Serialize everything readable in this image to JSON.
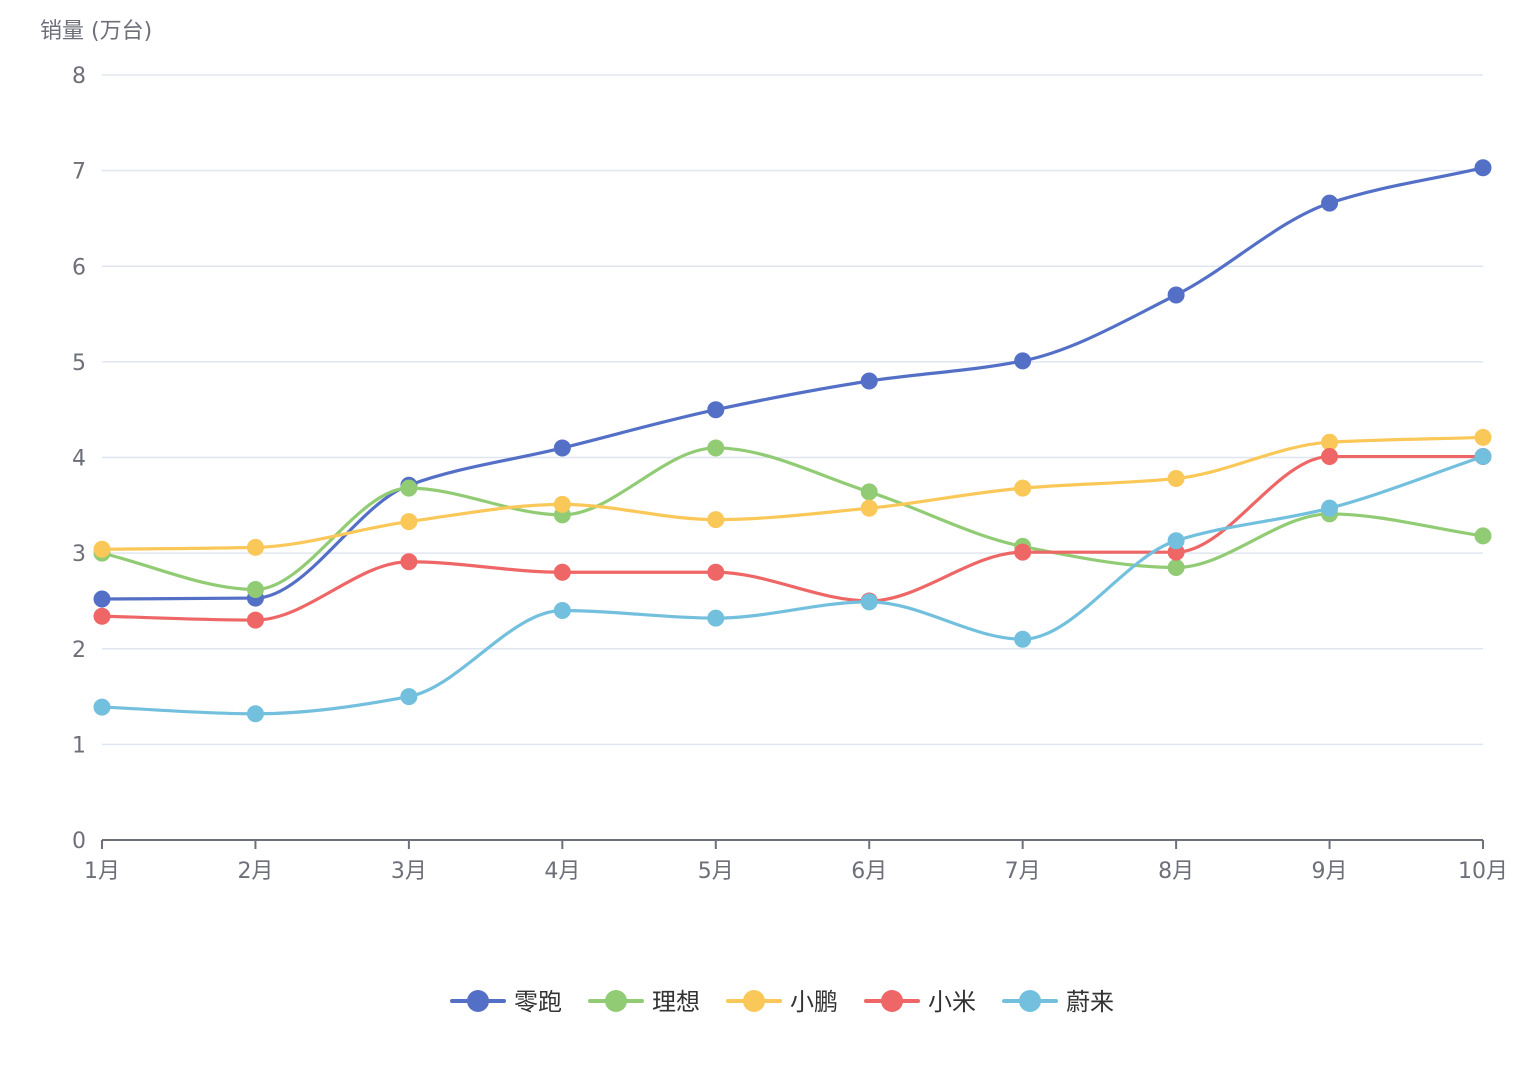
{
  "chart_data": {
    "type": "line",
    "smooth": true,
    "ylabel": "销量 (万台)",
    "xlabel": "",
    "categories": [
      "1月",
      "2月",
      "3月",
      "4月",
      "5月",
      "6月",
      "7月",
      "8月",
      "9月",
      "10月"
    ],
    "ylim": [
      0,
      8
    ],
    "yticks": [
      "0",
      "1",
      "2",
      "3",
      "4",
      "5",
      "6",
      "7",
      "8"
    ],
    "grid": true,
    "legend_position": "bottom-center",
    "series": [
      {
        "name": "零跑",
        "color": "#5470c6",
        "values": [
          2.52,
          2.53,
          3.71,
          4.1,
          4.5,
          4.8,
          5.01,
          5.7,
          6.66,
          7.03
        ]
      },
      {
        "name": "理想",
        "color": "#91cc75",
        "values": [
          3.0,
          2.62,
          3.68,
          3.4,
          4.1,
          3.64,
          3.07,
          2.85,
          3.41,
          3.18
        ]
      },
      {
        "name": "小鹏",
        "color": "#fac858",
        "values": [
          3.04,
          3.06,
          3.33,
          3.51,
          3.35,
          3.47,
          3.68,
          3.78,
          4.16,
          4.21
        ]
      },
      {
        "name": "小米",
        "color": "#ee6666",
        "values": [
          2.34,
          2.3,
          2.91,
          2.8,
          2.8,
          2.5,
          3.01,
          3.01,
          4.01,
          4.01
        ]
      },
      {
        "name": "蔚来",
        "color": "#73c0de",
        "values": [
          1.39,
          1.32,
          1.5,
          2.4,
          2.32,
          2.49,
          2.1,
          3.13,
          3.47,
          4.01
        ]
      }
    ]
  }
}
